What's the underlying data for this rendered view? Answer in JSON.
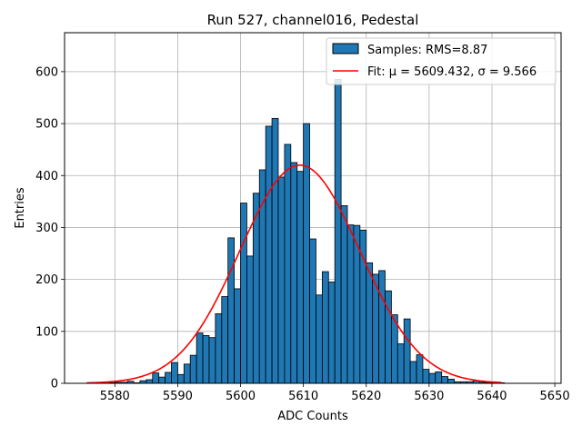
{
  "chart_data": {
    "type": "bar",
    "title": "Run 527, channel016, Pedestal",
    "xlabel": "ADC Counts",
    "ylabel": "Entries",
    "xlim": [
      5572,
      5651
    ],
    "ylim": [
      0,
      675
    ],
    "xticks": [
      5580,
      5590,
      5600,
      5610,
      5620,
      5630,
      5640,
      5650
    ],
    "yticks": [
      0,
      100,
      200,
      300,
      400,
      500,
      600
    ],
    "grid": true,
    "legend_position": "top-right",
    "colors": {
      "bars": "#1f77b4",
      "bar_edge": "#000000",
      "fit": "#ff0000",
      "grid": "#b0b0b0"
    },
    "histogram": {
      "name": "Samples: RMS=8.87",
      "bin_width": 1,
      "bin_starts": [
        5579,
        5580,
        5581,
        5582,
        5583,
        5584,
        5585,
        5586,
        5587,
        5588,
        5589,
        5590,
        5591,
        5592,
        5593,
        5594,
        5595,
        5596,
        5597,
        5598,
        5599,
        5600,
        5601,
        5602,
        5603,
        5604,
        5605,
        5606,
        5607,
        5608,
        5609,
        5610,
        5611,
        5612,
        5613,
        5614,
        5615,
        5616,
        5617,
        5618,
        5619,
        5620,
        5621,
        5622,
        5623,
        5624,
        5625,
        5626,
        5627,
        5628,
        5629,
        5630,
        5631,
        5632,
        5633,
        5634,
        5635,
        5636,
        5637,
        5638,
        5639,
        5640,
        5641
      ],
      "counts": [
        1,
        2,
        2,
        4,
        1,
        5,
        7,
        20,
        12,
        21,
        40,
        17,
        37,
        54,
        97,
        92,
        88,
        134,
        167,
        280,
        182,
        347,
        245,
        366,
        411,
        495,
        510,
        397,
        460,
        425,
        408,
        500,
        278,
        170,
        215,
        195,
        585,
        342,
        305,
        304,
        295,
        232,
        210,
        217,
        178,
        132,
        76,
        124,
        42,
        55,
        27,
        19,
        22,
        13,
        8,
        3,
        3,
        3,
        5,
        2,
        1,
        1,
        1
      ]
    },
    "fit": {
      "name": "Fit: μ = 5609.432, σ = 9.566",
      "mu": 5609.432,
      "sigma": 9.566,
      "amplitude": 420,
      "x_range": [
        5575.5,
        5641.5
      ]
    }
  }
}
